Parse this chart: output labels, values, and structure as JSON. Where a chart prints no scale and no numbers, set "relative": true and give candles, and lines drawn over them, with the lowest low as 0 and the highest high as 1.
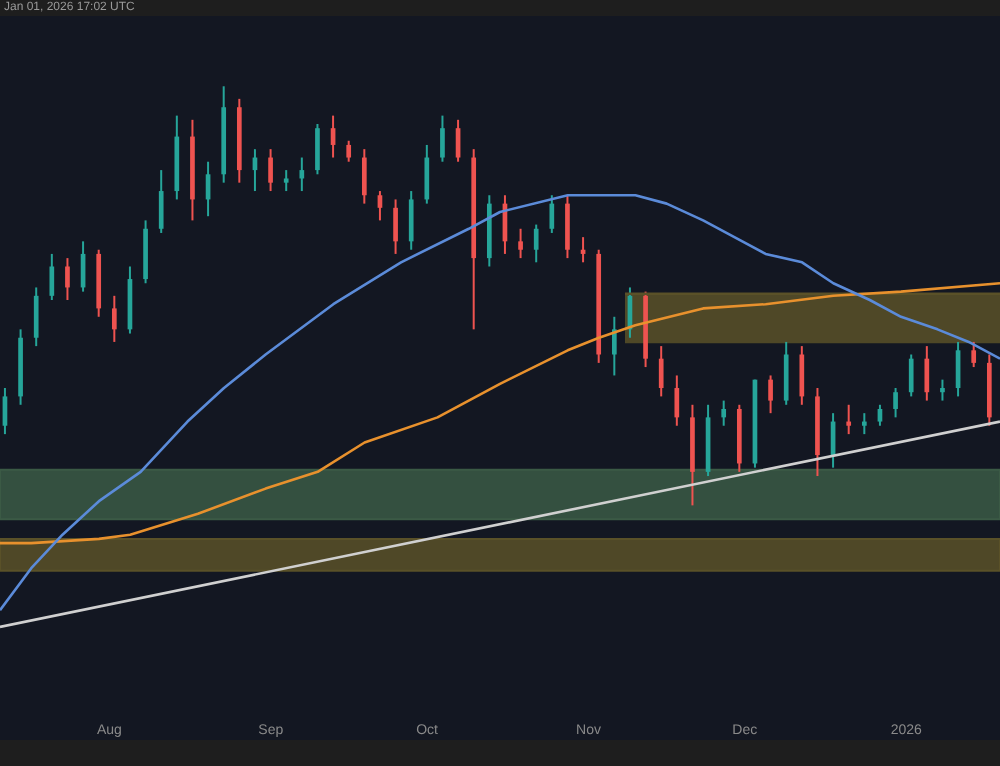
{
  "chart_data": {
    "type": "candlestick",
    "relative": true,
    "tick_labels": "x",
    "annotations": [
      "Jan 01, 2026 17:02 UTC"
    ],
    "xlim": [
      "2025-07-11",
      "2026-01-19"
    ],
    "xticks": [
      {
        "value": "2025-08-01",
        "label": "Aug"
      },
      {
        "value": "2025-09-01",
        "label": "Sep"
      },
      {
        "value": "2025-10-01",
        "label": "Oct"
      },
      {
        "value": "2025-11-01",
        "label": "Nov"
      },
      {
        "value": "2025-12-01",
        "label": "Dec"
      },
      {
        "value": "2026-01-01",
        "label": "2026"
      }
    ],
    "bands": [
      {
        "axis": "y",
        "from": -0.033,
        "to": 0.085,
        "color": "#3b5a45"
      },
      {
        "axis": "y",
        "from": -0.156,
        "to": -0.08,
        "color": "#5a5128"
      }
    ],
    "series": [
      {
        "type": "line",
        "color": "#5a5128",
        "x": [
          "2025-11-08",
          "2026-01-19"
        ],
        "values": [
          0.505,
          0.505
        ],
        "lower": [
          0.387,
          0.387
        ],
        "upper": [
          0.505,
          0.505
        ]
      },
      {
        "type": "line",
        "color": "#d0d0d0",
        "x": [
          "2025-07-11",
          "2026-01-19"
        ],
        "values": [
          -0.29,
          0.2
        ]
      },
      {
        "type": "line",
        "color": "#e8912d",
        "x": [
          "2025-07-11",
          "2025-07-17",
          "2025-07-30",
          "2025-08-05",
          "2025-08-18",
          "2025-08-31",
          "2025-09-10",
          "2025-09-19",
          "2025-10-03",
          "2025-10-15",
          "2025-10-28",
          "2025-11-03",
          "2025-11-10",
          "2025-11-23",
          "2025-12-05",
          "2025-12-18",
          "2025-12-31",
          "2026-01-19"
        ],
        "values": [
          -0.09,
          -0.09,
          -0.08,
          -0.07,
          -0.02,
          0.04,
          0.08,
          0.15,
          0.21,
          0.29,
          0.37,
          0.4,
          0.43,
          0.47,
          0.48,
          0.5,
          0.51,
          0.53
        ]
      },
      {
        "type": "line",
        "color": "#5b8bd9",
        "x": [
          "2025-07-11",
          "2025-07-17",
          "2025-07-23",
          "2025-07-30",
          "2025-08-07",
          "2025-08-16",
          "2025-08-23",
          "2025-08-31",
          "2025-09-13",
          "2025-09-26",
          "2025-10-09",
          "2025-10-15",
          "2025-10-28",
          "2025-11-10",
          "2025-11-16",
          "2025-11-23",
          "2025-11-29",
          "2025-12-05",
          "2025-12-12",
          "2025-12-18",
          "2025-12-25",
          "2025-12-31",
          "2026-01-07",
          "2026-01-13",
          "2026-01-19"
        ],
        "values": [
          -0.25,
          -0.15,
          -0.07,
          0.01,
          0.08,
          0.2,
          0.28,
          0.36,
          0.48,
          0.58,
          0.66,
          0.7,
          0.74,
          0.74,
          0.72,
          0.68,
          0.64,
          0.6,
          0.58,
          0.53,
          0.49,
          0.45,
          0.42,
          0.39,
          0.35
        ]
      },
      {
        "type": "candlestick",
        "x": [
          "2025-07-12",
          "2025-07-15",
          "2025-07-18",
          "2025-07-21",
          "2025-07-24",
          "2025-07-27",
          "2025-07-30",
          "2025-08-02",
          "2025-08-05",
          "2025-08-08",
          "2025-08-11",
          "2025-08-14",
          "2025-08-17",
          "2025-08-20",
          "2025-08-23",
          "2025-08-26",
          "2025-08-29",
          "2025-09-01",
          "2025-09-04",
          "2025-09-07",
          "2025-09-10",
          "2025-09-13",
          "2025-09-16",
          "2025-09-19",
          "2025-09-22",
          "2025-09-25",
          "2025-09-28",
          "2025-10-01",
          "2025-10-04",
          "2025-10-07",
          "2025-10-10",
          "2025-10-13",
          "2025-10-16",
          "2025-10-19",
          "2025-10-22",
          "2025-10-25",
          "2025-10-28",
          "2025-10-31",
          "2025-11-03",
          "2025-11-06",
          "2025-11-09",
          "2025-11-12",
          "2025-11-15",
          "2025-11-18",
          "2025-11-21",
          "2025-11-24",
          "2025-11-27",
          "2025-11-30",
          "2025-12-03",
          "2025-12-06",
          "2025-12-09",
          "2025-12-12",
          "2025-12-15",
          "2025-12-18",
          "2025-12-21",
          "2025-12-24",
          "2025-12-27",
          "2025-12-30",
          "2026-01-02",
          "2026-01-05",
          "2026-01-08",
          "2026-01-11",
          "2026-01-14",
          "2026-01-17"
        ],
        "ohlc": [
          [
            0.19,
            0.28,
            0.17,
            0.26
          ],
          [
            0.26,
            0.42,
            0.24,
            0.4
          ],
          [
            0.4,
            0.52,
            0.38,
            0.5
          ],
          [
            0.5,
            0.6,
            0.49,
            0.57
          ],
          [
            0.57,
            0.59,
            0.49,
            0.52
          ],
          [
            0.52,
            0.63,
            0.51,
            0.6
          ],
          [
            0.6,
            0.61,
            0.45,
            0.47
          ],
          [
            0.47,
            0.5,
            0.39,
            0.42
          ],
          [
            0.42,
            0.57,
            0.41,
            0.54
          ],
          [
            0.54,
            0.68,
            0.53,
            0.66
          ],
          [
            0.66,
            0.8,
            0.65,
            0.75
          ],
          [
            0.75,
            0.93,
            0.73,
            0.88
          ],
          [
            0.88,
            0.92,
            0.68,
            0.73
          ],
          [
            0.73,
            0.82,
            0.69,
            0.79
          ],
          [
            0.79,
            1,
            0.77,
            0.95
          ],
          [
            0.95,
            0.97,
            0.77,
            0.8
          ],
          [
            0.8,
            0.85,
            0.75,
            0.83
          ],
          [
            0.83,
            0.85,
            0.75,
            0.77
          ],
          [
            0.77,
            0.8,
            0.75,
            0.78
          ],
          [
            0.78,
            0.83,
            0.75,
            0.8
          ],
          [
            0.8,
            0.91,
            0.79,
            0.9
          ],
          [
            0.9,
            0.93,
            0.83,
            0.86
          ],
          [
            0.86,
            0.87,
            0.82,
            0.83
          ],
          [
            0.83,
            0.85,
            0.72,
            0.74
          ],
          [
            0.74,
            0.75,
            0.68,
            0.71
          ],
          [
            0.71,
            0.73,
            0.6,
            0.63
          ],
          [
            0.63,
            0.75,
            0.61,
            0.73
          ],
          [
            0.73,
            0.86,
            0.72,
            0.83
          ],
          [
            0.83,
            0.93,
            0.82,
            0.9
          ],
          [
            0.9,
            0.92,
            0.82,
            0.83
          ],
          [
            0.83,
            0.85,
            0.42,
            0.59
          ],
          [
            0.59,
            0.74,
            0.57,
            0.72
          ],
          [
            0.72,
            0.74,
            0.6,
            0.63
          ],
          [
            0.63,
            0.66,
            0.59,
            0.61
          ],
          [
            0.61,
            0.67,
            0.58,
            0.66
          ],
          [
            0.66,
            0.74,
            0.65,
            0.72
          ],
          [
            0.72,
            0.74,
            0.59,
            0.61
          ],
          [
            0.61,
            0.64,
            0.58,
            0.6
          ],
          [
            0.6,
            0.61,
            0.34,
            0.36
          ],
          [
            0.36,
            0.45,
            0.31,
            0.42
          ],
          [
            0.42,
            0.52,
            0.4,
            0.5
          ],
          [
            0.5,
            0.51,
            0.33,
            0.35
          ],
          [
            0.35,
            0.38,
            0.26,
            0.28
          ],
          [
            0.28,
            0.31,
            0.19,
            0.21
          ],
          [
            0.21,
            0.24,
            0,
            0.08
          ],
          [
            0.08,
            0.24,
            0.07,
            0.21
          ],
          [
            0.21,
            0.25,
            0.19,
            0.23
          ],
          [
            0.23,
            0.24,
            0.08,
            0.1
          ],
          [
            0.1,
            0.3,
            0.09,
            0.3
          ],
          [
            0.3,
            0.31,
            0.22,
            0.25
          ],
          [
            0.25,
            0.39,
            0.24,
            0.36
          ],
          [
            0.36,
            0.38,
            0.24,
            0.26
          ],
          [
            0.26,
            0.28,
            0.07,
            0.12
          ],
          [
            0.12,
            0.22,
            0.09,
            0.2
          ],
          [
            0.2,
            0.24,
            0.17,
            0.19
          ],
          [
            0.19,
            0.22,
            0.17,
            0.2
          ],
          [
            0.2,
            0.24,
            0.19,
            0.23
          ],
          [
            0.23,
            0.28,
            0.21,
            0.27
          ],
          [
            0.27,
            0.36,
            0.26,
            0.35
          ],
          [
            0.35,
            0.38,
            0.25,
            0.27
          ],
          [
            0.27,
            0.3,
            0.25,
            0.28
          ],
          [
            0.28,
            0.39,
            0.26,
            0.37
          ],
          [
            0.37,
            0.39,
            0.33,
            0.34
          ],
          [
            0.34,
            0.36,
            0.19,
            0.21
          ]
        ],
        "colors": [
          "#26a69a",
          "#26a69a",
          "#26a69a",
          "#26a69a",
          "#ef5350",
          "#26a69a",
          "#ef5350",
          "#ef5350",
          "#26a69a",
          "#26a69a",
          "#26a69a",
          "#26a69a",
          "#ef5350",
          "#26a69a",
          "#26a69a",
          "#ef5350",
          "#26a69a",
          "#ef5350",
          "#26a69a",
          "#26a69a",
          "#26a69a",
          "#ef5350",
          "#ef5350",
          "#ef5350",
          "#ef5350",
          "#ef5350",
          "#26a69a",
          "#26a69a",
          "#26a69a",
          "#ef5350",
          "#ef5350",
          "#26a69a",
          "#ef5350",
          "#ef5350",
          "#26a69a",
          "#26a69a",
          "#ef5350",
          "#ef5350",
          "#ef5350",
          "#26a69a",
          "#26a69a",
          "#ef5350",
          "#ef5350",
          "#ef5350",
          "#ef5350",
          "#26a69a",
          "#26a69a",
          "#ef5350",
          "#26a69a",
          "#ef5350",
          "#26a69a",
          "#ef5350",
          "#ef5350",
          "#26a69a",
          "#ef5350",
          "#26a69a",
          "#26a69a",
          "#26a69a",
          "#26a69a",
          "#ef5350",
          "#26a69a",
          "#26a69a",
          "#ef5350",
          "#ef5350"
        ]
      }
    ]
  }
}
